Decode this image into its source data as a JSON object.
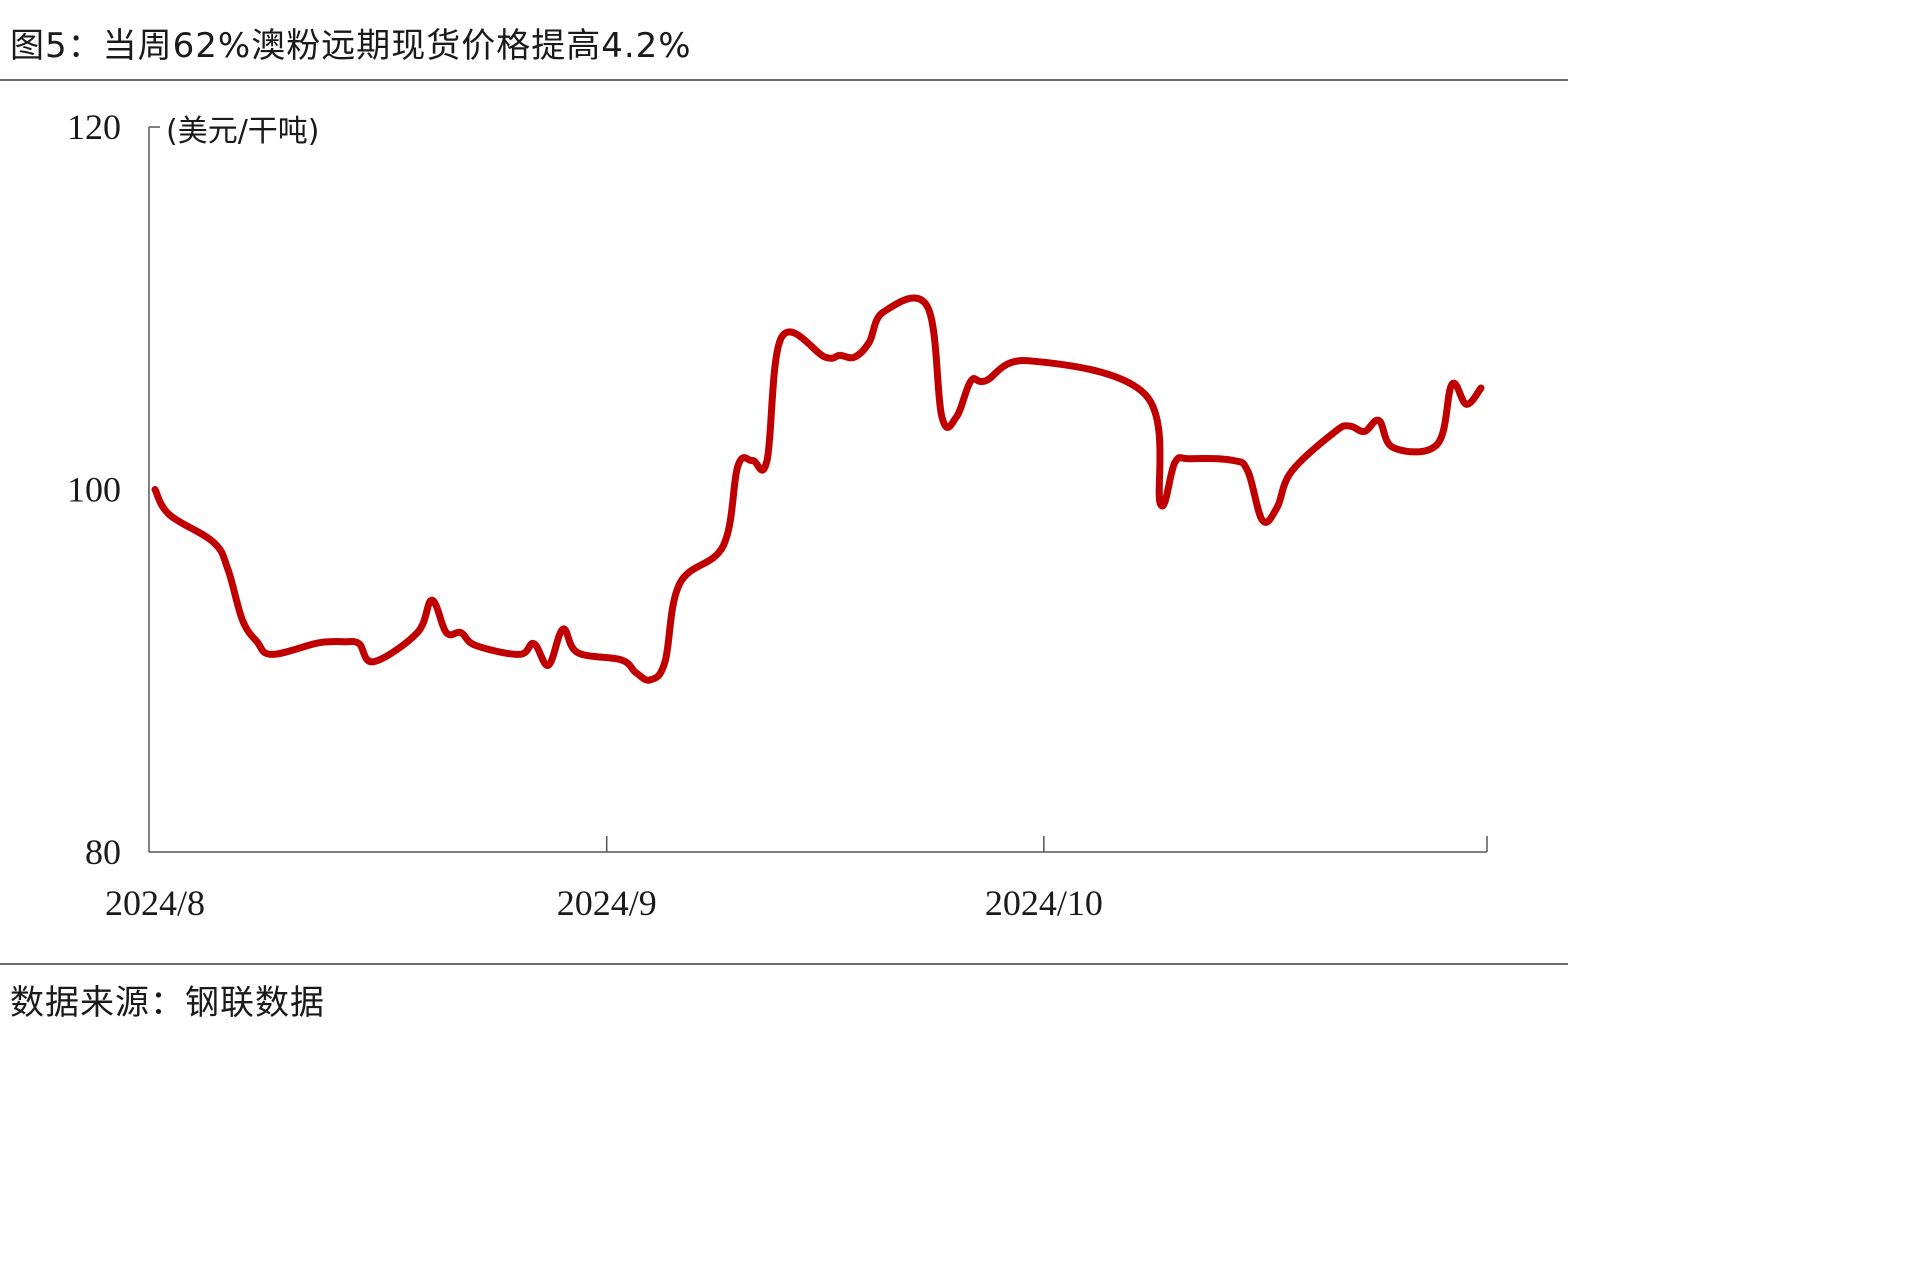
{
  "title": "图5：当周62%澳粉远期现货价格提高4.2%",
  "source": "数据来源：钢联数据",
  "chart_data": {
    "type": "line",
    "unit_label": "(美元/干吨)",
    "ylim": [
      80,
      120
    ],
    "yticks": [
      "80",
      "100",
      "120"
    ],
    "xticks": [
      "2024/8",
      "2024/9",
      "2024/10"
    ],
    "series_color": "#c00000",
    "grid": false,
    "series": [
      {
        "x": [
          "2024-08-01",
          "2024-08-02",
          "2024-08-05",
          "2024-08-06",
          "2024-08-07",
          "2024-08-08",
          "2024-08-09",
          "2024-08-12",
          "2024-08-13",
          "2024-08-14",
          "2024-08-15",
          "2024-08-16",
          "2024-08-19",
          "2024-08-20",
          "2024-08-21",
          "2024-08-22",
          "2024-08-23",
          "2024-08-26",
          "2024-08-27",
          "2024-08-28",
          "2024-08-29",
          "2024-08-30",
          "2024-09-02",
          "2024-09-03",
          "2024-09-04",
          "2024-09-05",
          "2024-09-06",
          "2024-09-09",
          "2024-09-10",
          "2024-09-11",
          "2024-09-12",
          "2024-09-13",
          "2024-09-16",
          "2024-09-17",
          "2024-09-18",
          "2024-09-19",
          "2024-09-20",
          "2024-09-23",
          "2024-09-24",
          "2024-09-25",
          "2024-09-26",
          "2024-09-27",
          "2024-09-30",
          "2024-10-08",
          "2024-10-09",
          "2024-10-10",
          "2024-10-11",
          "2024-10-14",
          "2024-10-15",
          "2024-10-16",
          "2024-10-17",
          "2024-10-18",
          "2024-10-21",
          "2024-10-22",
          "2024-10-23",
          "2024-10-24",
          "2024-10-25",
          "2024-10-28",
          "2024-10-29",
          "2024-10-30",
          "2024-10-31"
        ],
        "values": [
          100.0,
          98.6,
          97.1,
          95.6,
          92.8,
          91.6,
          90.9,
          91.5,
          91.6,
          91.6,
          91.5,
          90.5,
          92.1,
          93.9,
          92.1,
          92.1,
          91.4,
          90.9,
          91.5,
          90.3,
          92.3,
          91.0,
          90.6,
          89.9,
          89.5,
          90.5,
          94.8,
          96.9,
          101.3,
          101.6,
          101.6,
          108.4,
          107.3,
          107.4,
          107.3,
          108.1,
          109.8,
          110.1,
          104.0,
          104.0,
          106.0,
          106.0,
          107.1,
          105.2,
          99.2,
          101.5,
          101.7,
          101.6,
          101.0,
          98.3,
          99.0,
          101.0,
          103.2,
          103.5,
          103.2,
          103.8,
          102.3,
          102.5,
          105.8,
          104.7,
          105.6
        ]
      }
    ]
  }
}
